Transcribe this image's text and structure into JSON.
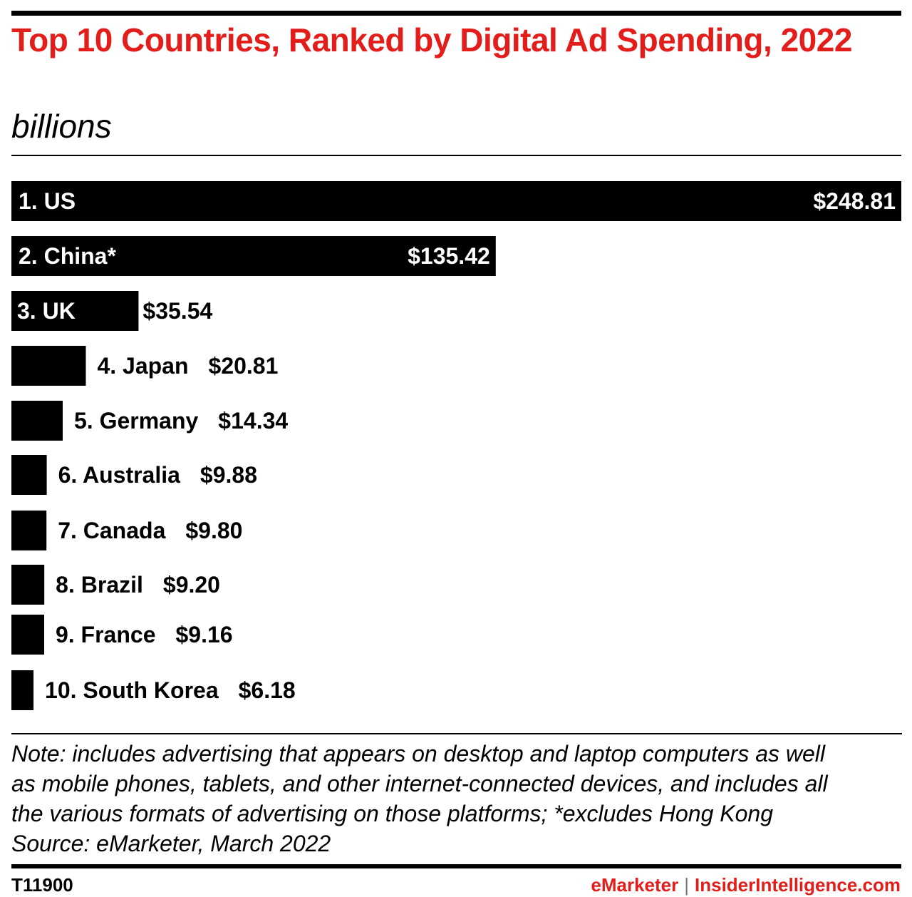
{
  "header": {
    "title": "Top 10 Countries, Ranked by Digital Ad Spending, 2022",
    "subtitle": "billions"
  },
  "chart_data": {
    "type": "bar",
    "orientation": "horizontal",
    "title": "Top 10 Countries, Ranked by Digital Ad Spending, 2022",
    "subtitle": "billions",
    "categories": [
      "1. US",
      "2. China*",
      "3. UK",
      "4. Japan",
      "5. Germany",
      "6. Australia",
      "7. Canada",
      "8. Brazil",
      "9. France",
      "10. South Korea"
    ],
    "values": [
      248.81,
      135.42,
      35.54,
      20.81,
      14.34,
      9.88,
      9.8,
      9.2,
      9.16,
      6.18
    ],
    "value_labels": [
      "$248.81",
      "$135.42",
      "$35.54",
      "$20.81",
      "$14.34",
      "$9.88",
      "$9.80",
      "$9.20",
      "$9.16",
      "$6.18"
    ],
    "bar_color": "#000000",
    "grid": false,
    "legend": "none"
  },
  "notes": {
    "lines": [
      "Note: includes advertising that appears on desktop and laptop computers as well",
      "as mobile phones, tablets, and other internet-connected devices, and includes all",
      "the various formats of advertising on those platforms; *excludes Hong Kong",
      "Source: eMarketer, March 2022"
    ]
  },
  "footer": {
    "id": "T11900",
    "brand": "eMarketer",
    "separator": "|",
    "site": "InsiderIntelligence.com"
  },
  "colors": {
    "accent": "#e31d1a",
    "text": "#000000"
  }
}
